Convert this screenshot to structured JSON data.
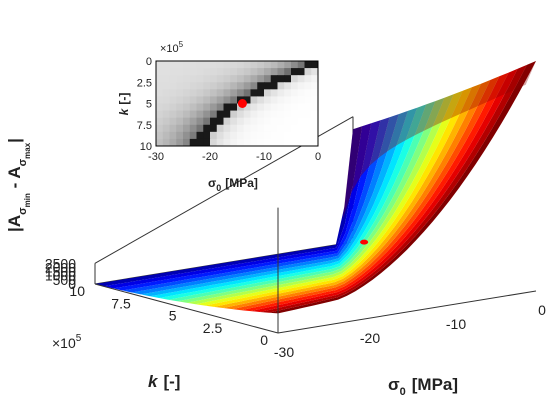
{
  "chart_data": {
    "type": "surface3d",
    "zlabel": {
      "main": "|A",
      "sub1": "σ",
      "sub1b": "min",
      "mid": " - A",
      "sub2": "σ",
      "sub2b": "max",
      "end": "|"
    },
    "xlabel": {
      "sym": "σ",
      "sub": "0",
      "unit": "[MPa]"
    },
    "ylabel": {
      "sym": "k",
      "unit": "[-]"
    },
    "z_ticks": [
      "0",
      "500",
      "1000",
      "1500",
      "2000",
      "2500"
    ],
    "z_lim": [
      0,
      2500
    ],
    "x_ticks": [
      "-30",
      "-20",
      "-10",
      "0"
    ],
    "x_lim": [
      -30,
      0
    ],
    "y_ticks": [
      "0",
      "2.5",
      "5",
      "7.5",
      "10"
    ],
    "y_lim": [
      0,
      10
    ],
    "y_multiplier": {
      "base": "×10",
      "exp": "5"
    },
    "surface_rows": 20,
    "marker": {
      "sigma0": -14,
      "k": 5,
      "color": "#ff0000"
    },
    "colormap": "jet",
    "inset": {
      "type": "heatmap",
      "xlabel": {
        "sym": "σ",
        "sub": "0",
        "unit": "[MPa]"
      },
      "ylabel": {
        "sym": "k",
        "unit": "[-]"
      },
      "x_ticks": [
        "-30",
        "-20",
        "-10",
        "0"
      ],
      "x_lim": [
        -30,
        0
      ],
      "y_ticks": [
        "0",
        "2.5",
        "5",
        "7.5",
        "10"
      ],
      "y_lim": [
        0,
        10
      ],
      "y_multiplier": {
        "base": "×10",
        "exp": "5"
      },
      "colormap": "gray",
      "marker": {
        "sigma0": -14,
        "k": 5,
        "color": "#ff0000"
      }
    }
  }
}
